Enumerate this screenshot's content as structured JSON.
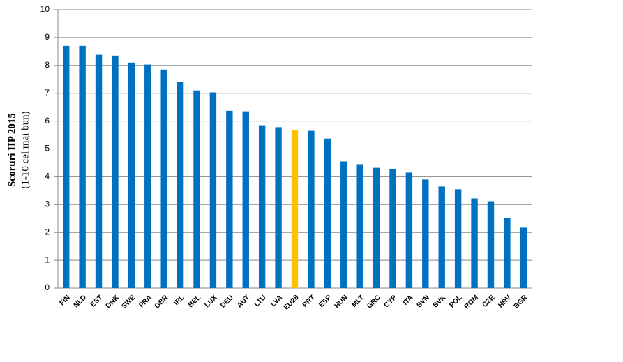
{
  "chart_data": {
    "type": "bar",
    "ylabel": [
      "Scoruri IIP 2015",
      "(1-10 cel mai bun)"
    ],
    "categories": [
      "FIN",
      "NLD",
      "EST",
      "DNK",
      "SWE",
      "FRA",
      "GBR",
      "IRL",
      "BEL",
      "LUX",
      "DEU",
      "AUT",
      "LTU",
      "LVA",
      "EU28",
      "PRT",
      "ESP",
      "HUN",
      "MLT",
      "GRC",
      "CYP",
      "ITA",
      "SVN",
      "SVK",
      "POL",
      "ROM",
      "CZE",
      "HRV",
      "BGR"
    ],
    "values": [
      8.7,
      8.7,
      8.38,
      8.35,
      8.1,
      8.03,
      7.85,
      7.4,
      7.1,
      7.03,
      6.37,
      6.35,
      5.85,
      5.78,
      5.67,
      5.65,
      5.37,
      4.55,
      4.45,
      4.32,
      4.27,
      4.15,
      3.9,
      3.65,
      3.55,
      3.22,
      3.12,
      2.52,
      2.17
    ],
    "colors": [
      "#0070c0",
      "#0070c0",
      "#0070c0",
      "#0070c0",
      "#0070c0",
      "#0070c0",
      "#0070c0",
      "#0070c0",
      "#0070c0",
      "#0070c0",
      "#0070c0",
      "#0070c0",
      "#0070c0",
      "#0070c0",
      "#ffc000",
      "#0070c0",
      "#0070c0",
      "#0070c0",
      "#0070c0",
      "#0070c0",
      "#0070c0",
      "#0070c0",
      "#0070c0",
      "#0070c0",
      "#0070c0",
      "#0070c0",
      "#0070c0",
      "#0070c0",
      "#0070c0"
    ],
    "ylim": [
      0,
      10
    ],
    "yticks": [
      0,
      1,
      2,
      3,
      4,
      5,
      6,
      7,
      8,
      9,
      10
    ],
    "grid": true
  }
}
